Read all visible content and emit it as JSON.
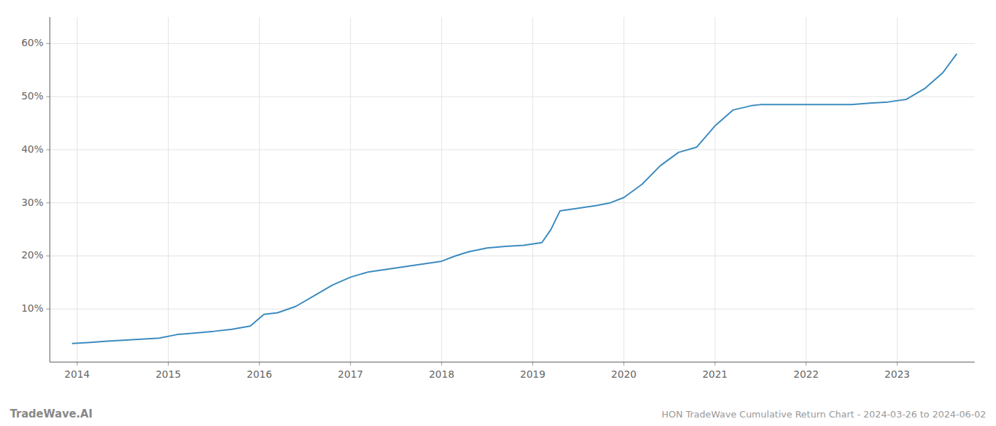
{
  "chart_data": {
    "type": "line",
    "title": "HON TradeWave Cumulative Return Chart - 2024-03-26 to 2024-06-02",
    "annotations": [
      "TradeWave.AI"
    ],
    "color": "#3a8abf",
    "grid": true,
    "x": [
      2013.95,
      2014.05,
      2014.15,
      2014.3,
      2014.5,
      2014.7,
      2014.9,
      2015.1,
      2015.3,
      2015.5,
      2015.7,
      2015.9,
      2016.05,
      2016.2,
      2016.4,
      2016.6,
      2016.8,
      2017.0,
      2017.2,
      2017.4,
      2017.6,
      2017.8,
      2018.0,
      2018.15,
      2018.3,
      2018.5,
      2018.7,
      2018.9,
      2019.1,
      2019.2,
      2019.3,
      2019.5,
      2019.7,
      2019.85,
      2020.0,
      2020.2,
      2020.4,
      2020.6,
      2020.8,
      2021.0,
      2021.2,
      2021.4,
      2021.5,
      2021.7,
      2021.9,
      2022.1,
      2022.3,
      2022.5,
      2022.7,
      2022.9,
      2023.1,
      2023.3,
      2023.5,
      2023.65
    ],
    "values": [
      3.5,
      3.6,
      3.7,
      3.9,
      4.1,
      4.3,
      4.5,
      5.2,
      5.5,
      5.8,
      6.2,
      6.8,
      9.0,
      9.3,
      10.5,
      12.5,
      14.5,
      16.0,
      17.0,
      17.5,
      18.0,
      18.5,
      19.0,
      20.0,
      20.8,
      21.5,
      21.8,
      22.0,
      22.5,
      25.0,
      28.5,
      29.0,
      29.5,
      30.0,
      31.0,
      33.5,
      37.0,
      39.5,
      40.5,
      44.5,
      47.5,
      48.3,
      48.5,
      48.5,
      48.5,
      48.5,
      48.5,
      48.5,
      48.8,
      49.0,
      49.5,
      51.5,
      54.5,
      58.0
    ],
    "xlim": [
      2013.7,
      2023.85
    ],
    "xticks": [
      2014,
      2015,
      2016,
      2017,
      2018,
      2019,
      2020,
      2021,
      2022,
      2023
    ],
    "ylim": [
      0,
      65
    ],
    "yticks": [
      {
        "value": 10,
        "label": "10%"
      },
      {
        "value": 20,
        "label": "20%"
      },
      {
        "value": 30,
        "label": "30%"
      },
      {
        "value": 40,
        "label": "40%"
      },
      {
        "value": 50,
        "label": "50%"
      },
      {
        "value": 60,
        "label": "60%"
      }
    ]
  }
}
